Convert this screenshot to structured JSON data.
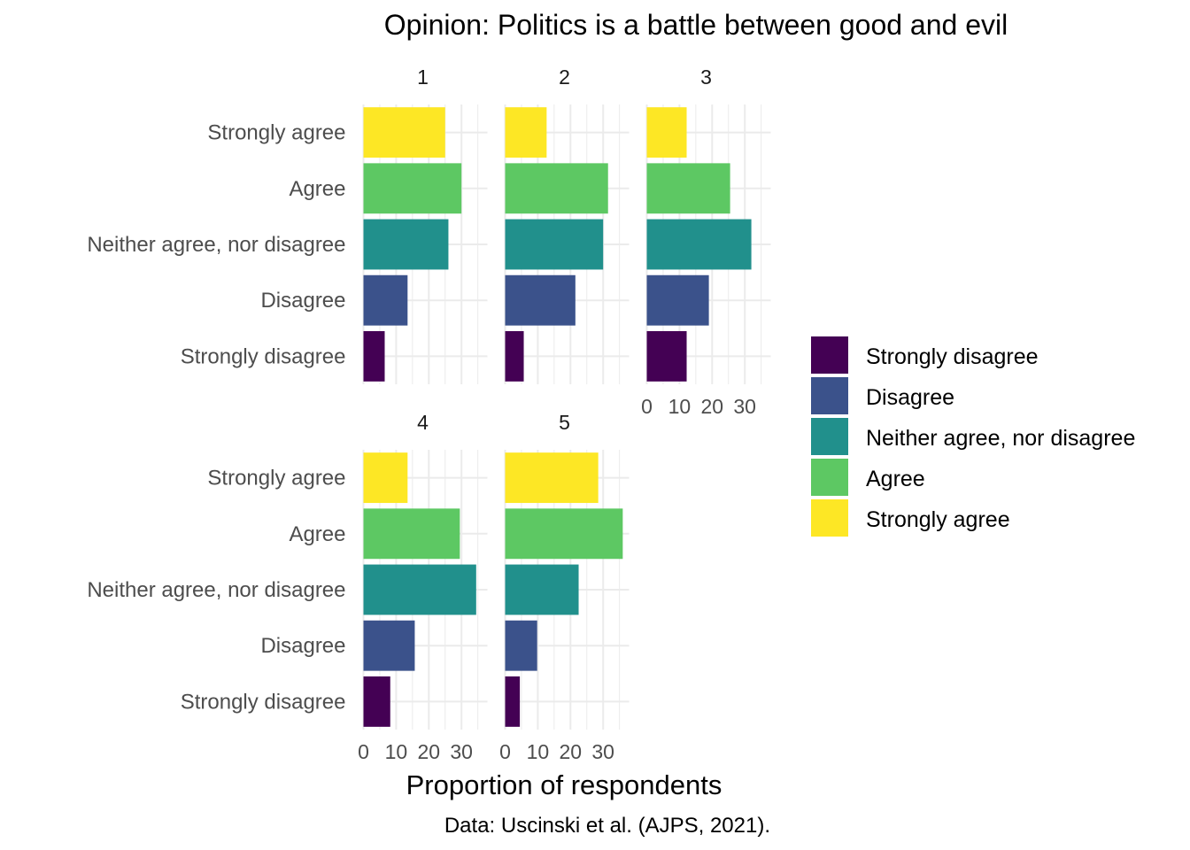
{
  "chart_data": {
    "type": "bar",
    "orientation": "horizontal",
    "title": "Opinion: Politics is a battle between good and evil",
    "xlabel": "Proportion of respondents",
    "ylabel": "",
    "caption": "Data: Uscinski et al. (AJPS, 2021).",
    "xlim": [
      0,
      37
    ],
    "xticks": [
      0,
      10,
      20,
      30
    ],
    "grid": true,
    "legend_position": "right",
    "categories": [
      "Strongly disagree",
      "Disagree",
      "Neither agree, nor disagree",
      "Agree",
      "Strongly agree"
    ],
    "colors": {
      "Strongly disagree": "#440154",
      "Disagree": "#3b528b",
      "Neither agree, nor disagree": "#21908c",
      "Agree": "#5dc863",
      "Strongly agree": "#fde725"
    },
    "legend": [
      "Strongly disagree",
      "Disagree",
      "Neither agree, nor disagree",
      "Agree",
      "Strongly agree"
    ],
    "facets": [
      {
        "label": "1",
        "values": [
          6.5,
          13.5,
          26,
          30,
          25
        ]
      },
      {
        "label": "2",
        "values": [
          5.7,
          21.5,
          30,
          31.5,
          12.7
        ]
      },
      {
        "label": "3",
        "values": [
          12.2,
          19,
          32,
          25.5,
          12.2
        ]
      },
      {
        "label": "4",
        "values": [
          8.2,
          15.7,
          34.5,
          29.5,
          13.5
        ]
      },
      {
        "label": "5",
        "values": [
          4.5,
          9.8,
          22.5,
          36,
          28.5
        ]
      }
    ]
  }
}
